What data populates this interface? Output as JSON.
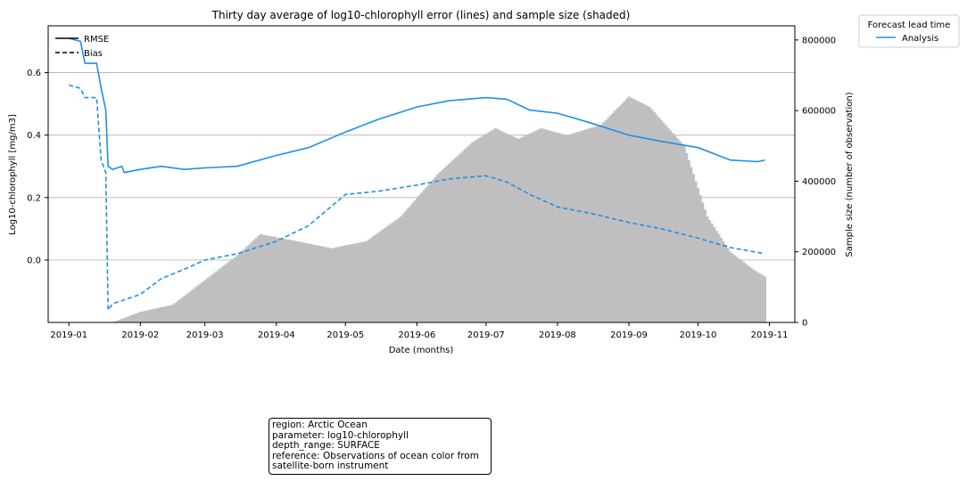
{
  "chart_data": {
    "type": "line",
    "title": "Thirty day average of log10-chlorophyll error (lines) and sample size (shaded)",
    "xlabel": "Date (months)",
    "ylabel": "Log10-chlorophyll [mg/m3]",
    "y2label": "Sample size (number of observation)",
    "xlim": [
      "2018-12-23",
      "2019-11-12"
    ],
    "ylim": [
      -0.2,
      0.75
    ],
    "y2lim": [
      0,
      840000
    ],
    "x_ticks": [
      "2019-01",
      "2019-02",
      "2019-03",
      "2019-04",
      "2019-05",
      "2019-06",
      "2019-07",
      "2019-08",
      "2019-09",
      "2019-10",
      "2019-11"
    ],
    "y_ticks": [
      "0.0",
      "0.2",
      "0.4",
      "0.6"
    ],
    "y2_ticks": [
      "0",
      "200000",
      "400000",
      "600000",
      "800000"
    ],
    "grid": "horizontal",
    "line_style_legend": {
      "placement": "top-left",
      "entries": [
        {
          "label": "RMSE",
          "style": "solid"
        },
        {
          "label": "Bias",
          "style": "dashed"
        }
      ]
    },
    "legend": {
      "title": "Forecast lead time",
      "placement": "outside-top-right",
      "entries": [
        {
          "label": "Analysis",
          "color": "#1f8fe8"
        }
      ]
    },
    "series": [
      {
        "name": "Analysis",
        "metric": "RMSE",
        "color": "#1f8fe8",
        "x": [
          "2019-01-01",
          "2019-01-06",
          "2019-01-08",
          "2019-01-13",
          "2019-01-15",
          "2019-01-17",
          "2019-01-18",
          "2019-01-20",
          "2019-01-24",
          "2019-01-25",
          "2019-02-01",
          "2019-02-10",
          "2019-02-20",
          "2019-03-01",
          "2019-03-15",
          "2019-04-01",
          "2019-04-15",
          "2019-05-01",
          "2019-05-15",
          "2019-06-01",
          "2019-06-15",
          "2019-07-01",
          "2019-07-10",
          "2019-07-20",
          "2019-08-01",
          "2019-08-15",
          "2019-09-01",
          "2019-09-15",
          "2019-10-01",
          "2019-10-15",
          "2019-10-27",
          "2019-10-30"
        ],
        "values": [
          0.71,
          0.7,
          0.63,
          0.63,
          0.55,
          0.48,
          0.3,
          0.29,
          0.3,
          0.28,
          0.29,
          0.3,
          0.29,
          0.295,
          0.3,
          0.335,
          0.36,
          0.41,
          0.45,
          0.49,
          0.51,
          0.52,
          0.515,
          0.48,
          0.47,
          0.44,
          0.4,
          0.38,
          0.36,
          0.32,
          0.315,
          0.32
        ]
      },
      {
        "name": "Analysis",
        "metric": "Bias",
        "color": "#1f8fe8",
        "x": [
          "2019-01-01",
          "2019-01-06",
          "2019-01-08",
          "2019-01-13",
          "2019-01-15",
          "2019-01-17",
          "2019-01-18",
          "2019-01-20",
          "2019-01-24",
          "2019-02-01",
          "2019-02-10",
          "2019-02-20",
          "2019-03-01",
          "2019-03-15",
          "2019-04-01",
          "2019-04-15",
          "2019-05-01",
          "2019-05-15",
          "2019-06-01",
          "2019-06-15",
          "2019-07-01",
          "2019-07-10",
          "2019-07-20",
          "2019-08-01",
          "2019-08-15",
          "2019-09-01",
          "2019-09-15",
          "2019-10-01",
          "2019-10-15",
          "2019-10-30"
        ],
        "values": [
          0.56,
          0.55,
          0.52,
          0.52,
          0.32,
          0.28,
          -0.16,
          -0.14,
          -0.13,
          -0.11,
          -0.06,
          -0.03,
          0.0,
          0.02,
          0.06,
          0.11,
          0.21,
          0.22,
          0.24,
          0.26,
          0.27,
          0.25,
          0.21,
          0.17,
          0.15,
          0.12,
          0.1,
          0.07,
          0.04,
          0.02
        ]
      }
    ],
    "sample_size": {
      "color": "#bfbfbf",
      "x": [
        "2019-01-20",
        "2019-02-01",
        "2019-02-15",
        "2019-03-01",
        "2019-03-15",
        "2019-03-25",
        "2019-04-10",
        "2019-04-25",
        "2019-05-10",
        "2019-05-25",
        "2019-06-10",
        "2019-06-25",
        "2019-07-05",
        "2019-07-15",
        "2019-07-25",
        "2019-08-05",
        "2019-08-20",
        "2019-09-01",
        "2019-09-10",
        "2019-09-25",
        "2019-10-05",
        "2019-10-15",
        "2019-10-25",
        "2019-10-30"
      ],
      "values": [
        0,
        30000,
        50000,
        120000,
        190000,
        250000,
        230000,
        210000,
        230000,
        300000,
        420000,
        510000,
        550000,
        520000,
        550000,
        530000,
        560000,
        640000,
        610000,
        500000,
        300000,
        200000,
        150000,
        130000
      ]
    }
  },
  "info_box": {
    "lines": [
      "region: Arctic Ocean",
      "parameter: log10-chlorophyll",
      "depth_range: SURFACE",
      "reference: Observations of ocean color from satellite-born instrument"
    ]
  }
}
